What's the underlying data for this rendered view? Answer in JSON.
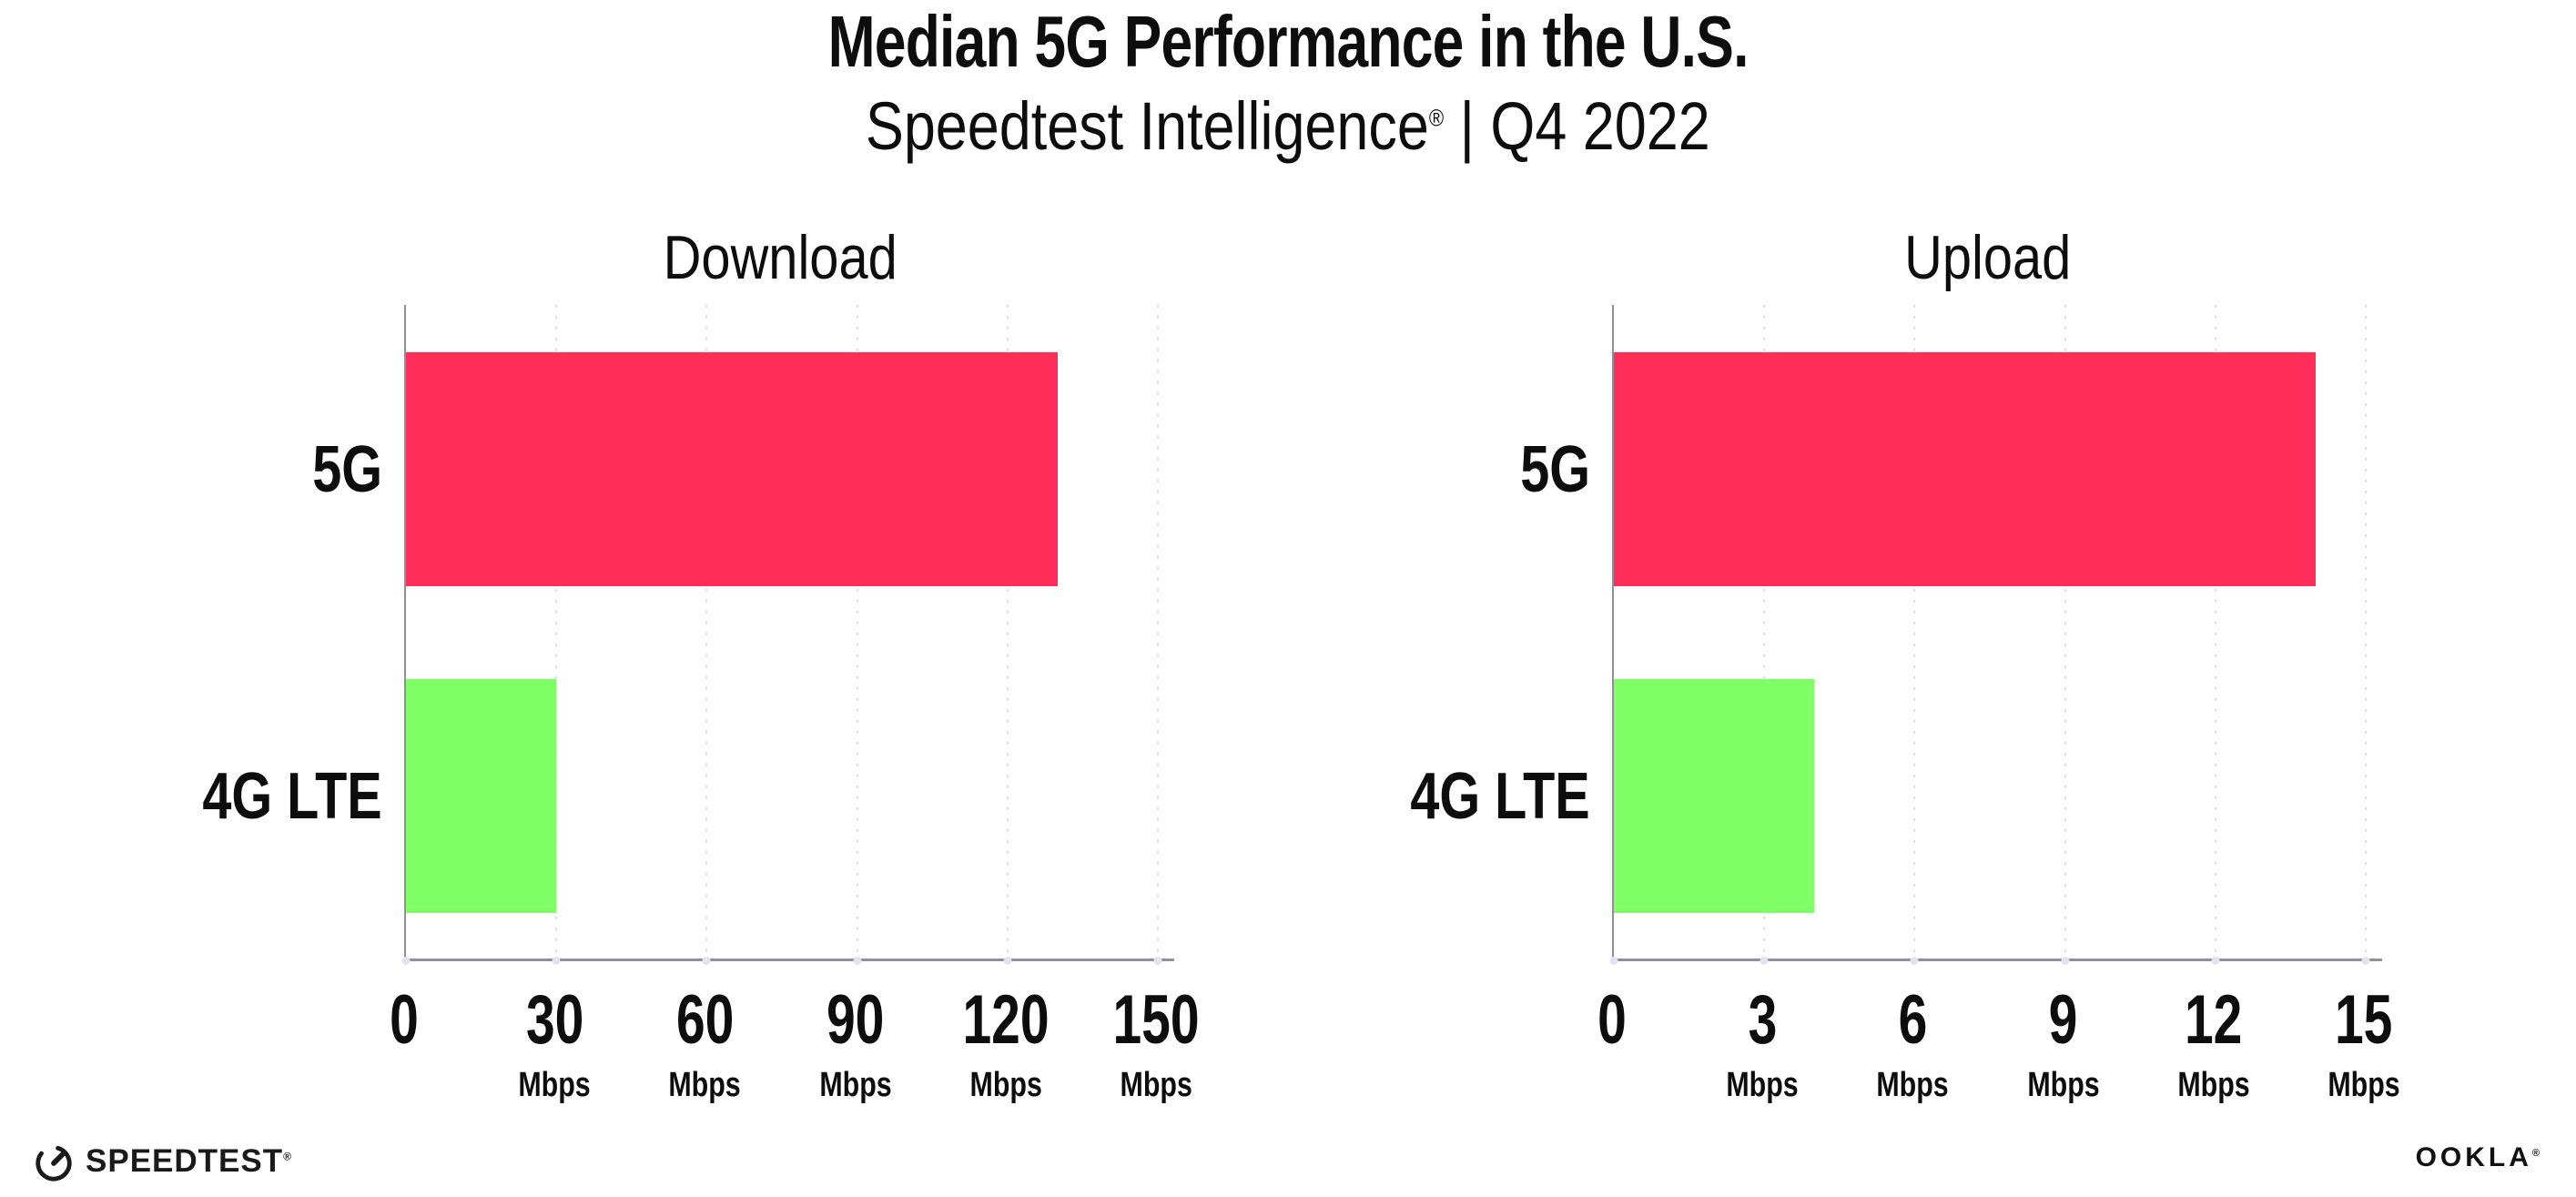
{
  "page": {
    "title": "Median 5G Performance in the U.S.",
    "subtitle_brand": "Speedtest Intelligence",
    "subtitle_reg": "®",
    "subtitle_rest": " | Q4 2022"
  },
  "footer": {
    "speedtest_logo_text": "SPEEDTEST",
    "speedtest_reg": "®",
    "ookla_logo_text": "OOKLA",
    "ookla_reg": "®"
  },
  "colors": {
    "bar_5g": "#ff2d58",
    "bar_4g_lte": "#80ff66",
    "gridline_dot": "#dcdee8",
    "y_axis": "#8f8f96",
    "x_axis": "#90909a",
    "text": "#0d0d0d"
  },
  "chart_data": [
    {
      "type": "bar",
      "orientation": "horizontal",
      "title": "Download",
      "categories": [
        "5G",
        "4G LTE"
      ],
      "values": [
        130,
        30
      ],
      "unit": "Mbps",
      "xlim": [
        0,
        150
      ],
      "xticks": [
        0,
        30,
        60,
        90,
        120,
        150
      ],
      "bar_colors": [
        "#ff2d58",
        "#80ff66"
      ],
      "grid": "dotted-vertical",
      "legend": "none"
    },
    {
      "type": "bar",
      "orientation": "horizontal",
      "title": "Upload",
      "categories": [
        "5G",
        "4G LTE"
      ],
      "values": [
        14,
        4
      ],
      "unit": "Mbps",
      "xlim": [
        0,
        15
      ],
      "xticks": [
        0,
        3,
        6,
        9,
        12,
        15
      ],
      "bar_colors": [
        "#ff2d58",
        "#80ff66"
      ],
      "grid": "dotted-vertical",
      "legend": "none"
    }
  ]
}
